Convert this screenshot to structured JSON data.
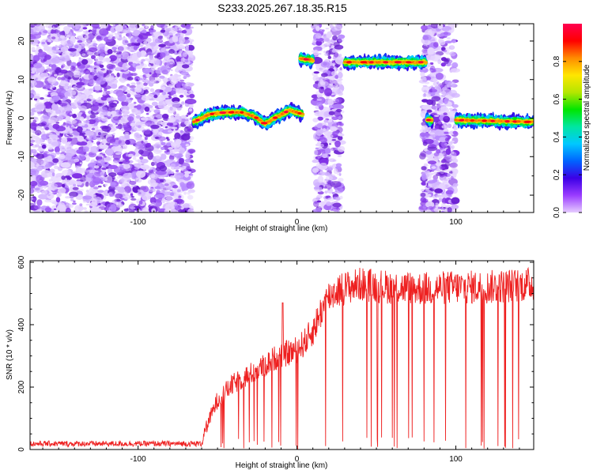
{
  "title": "S233.2025.267.18.35.R15",
  "chart_data": [
    {
      "type": "heatmap",
      "name": "spectrogram",
      "xlabel": "Height of straight line (km)",
      "ylabel": "Frequency (Hz)",
      "xlim": [
        -168,
        149
      ],
      "ylim": [
        -24.5,
        24.5
      ],
      "xticks": [
        -100,
        0,
        100
      ],
      "yticks": [
        -20,
        -10,
        0,
        10,
        20
      ],
      "colorbar": {
        "label": "Normalized spectral amplitude",
        "range": [
          0.0,
          1.0
        ],
        "ticks": [
          0.0,
          0.2,
          0.4,
          0.6,
          0.8
        ],
        "colors": [
          "#e6ccff",
          "#9a3cff",
          "#3c00e6",
          "#0064ff",
          "#00c8ff",
          "#00e6a0",
          "#00e600",
          "#b4e600",
          "#ffe600",
          "#ff8c00",
          "#ff0000",
          "#ff0050"
        ]
      },
      "noise_regions_km": [
        [
          -168,
          -66
        ],
        [
          11,
          28
        ],
        [
          79,
          100
        ]
      ],
      "signal_tracks": [
        {
          "x_start": -65,
          "x_end": 4,
          "freq_hz": [
            [
              -65,
              -1.0
            ],
            [
              -55,
              1.0
            ],
            [
              -45,
              1.5
            ],
            [
              -35,
              1.5
            ],
            [
              -27,
              0.5
            ],
            [
              -20,
              -1.5
            ],
            [
              -12,
              0.5
            ],
            [
              -5,
              2.0
            ],
            [
              4,
              1.0
            ]
          ]
        },
        {
          "x_start": 2,
          "x_end": 10,
          "freq_hz": [
            [
              2,
              15.5
            ],
            [
              10,
              15.0
            ]
          ]
        },
        {
          "x_start": 30,
          "x_end": 81,
          "freq_hz": [
            [
              30,
              14.5
            ],
            [
              81,
              14.5
            ]
          ]
        },
        {
          "x_start": 82,
          "x_end": 85,
          "freq_hz": [
            [
              82,
              -0.5
            ],
            [
              85,
              -0.5
            ]
          ]
        },
        {
          "x_start": 100,
          "x_end": 149,
          "freq_hz": [
            [
              100,
              -0.5
            ],
            [
              149,
              -1.0
            ]
          ]
        }
      ]
    },
    {
      "type": "line",
      "name": "snr",
      "xlabel": "Height of straight line (km)",
      "ylabel": "SNR (10 * v/v)",
      "xlim": [
        -168,
        149
      ],
      "ylim": [
        0,
        605
      ],
      "xticks": [
        -100,
        0,
        100
      ],
      "yticks": [
        0,
        200,
        400,
        600
      ],
      "color": "#ee2020",
      "envelope": [
        {
          "x": -168,
          "y": 15
        },
        {
          "x": -60,
          "y": 15
        },
        {
          "x": -58,
          "y": 60
        },
        {
          "x": -50,
          "y": 160
        },
        {
          "x": -40,
          "y": 210
        },
        {
          "x": -30,
          "y": 240
        },
        {
          "x": -20,
          "y": 270
        },
        {
          "x": -12,
          "y": 300
        },
        {
          "x": -5,
          "y": 310
        },
        {
          "x": 0,
          "y": 320
        },
        {
          "x": 5,
          "y": 345
        },
        {
          "x": 10,
          "y": 380
        },
        {
          "x": 15,
          "y": 440
        },
        {
          "x": 20,
          "y": 490
        },
        {
          "x": 25,
          "y": 510
        },
        {
          "x": 32,
          "y": 520
        },
        {
          "x": 40,
          "y": 530
        },
        {
          "x": 60,
          "y": 520
        },
        {
          "x": 80,
          "y": 515
        },
        {
          "x": 100,
          "y": 520
        },
        {
          "x": 120,
          "y": 520
        },
        {
          "x": 149,
          "y": 530
        }
      ],
      "peak_annotation": {
        "x": -9,
        "y": 470
      }
    }
  ]
}
